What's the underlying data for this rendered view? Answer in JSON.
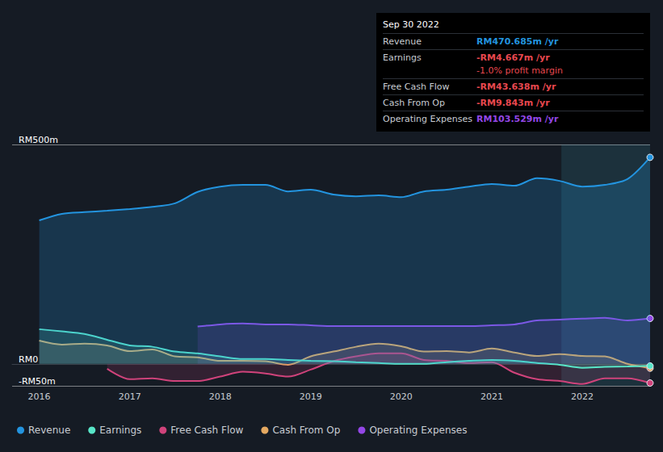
{
  "chart_data": {
    "type": "line",
    "x": [
      2016.0,
      2016.25,
      2016.5,
      2016.75,
      2017.0,
      2017.25,
      2017.5,
      2017.75,
      2018.0,
      2018.25,
      2018.5,
      2018.75,
      2019.0,
      2019.25,
      2019.5,
      2019.75,
      2020.0,
      2020.25,
      2020.5,
      2020.75,
      2021.0,
      2021.25,
      2021.5,
      2021.75,
      2022.0,
      2022.25,
      2022.5,
      2022.75
    ],
    "series": [
      {
        "name": "Revenue",
        "color": "#2394df",
        "values": [
          327,
          342,
          346,
          349,
          353,
          358,
          366,
          392,
          404,
          408,
          408,
          393,
          397,
          386,
          382,
          384,
          380,
          393,
          397,
          404,
          410,
          406,
          423,
          417,
          404,
          408,
          421,
          470.685
        ]
      },
      {
        "name": "Earnings",
        "color": "#58e6c8",
        "values": [
          79,
          74,
          68,
          55,
          42,
          39,
          28,
          24,
          17,
          11,
          11,
          9,
          7,
          6,
          4,
          2,
          0,
          0,
          4,
          7,
          9,
          7,
          2,
          -2,
          -9,
          -7,
          -6,
          -4.667
        ]
      },
      {
        "name": "Free Cash Flow",
        "color": "#d0437b",
        "values": [
          null,
          null,
          null,
          -11,
          -35,
          -33,
          -39,
          -39,
          -29,
          -18,
          -22,
          -29,
          -13,
          6,
          17,
          24,
          24,
          9,
          7,
          2,
          4,
          -20,
          -35,
          -39,
          -46,
          -33,
          -33,
          -43.638
        ]
      },
      {
        "name": "Cash From Op",
        "color": "#e5a961",
        "values": [
          53,
          44,
          46,
          42,
          29,
          33,
          17,
          15,
          7,
          7,
          6,
          -2,
          17,
          28,
          39,
          46,
          40,
          28,
          29,
          26,
          35,
          26,
          18,
          22,
          18,
          17,
          0,
          -9.843
        ]
      },
      {
        "name": "Operating Expenses",
        "color": "#9447e7",
        "values": [
          null,
          null,
          null,
          null,
          null,
          null,
          null,
          85,
          90,
          92,
          90,
          90,
          88,
          86,
          86,
          86,
          86,
          86,
          86,
          86,
          88,
          90,
          99,
          101,
          103,
          105,
          99,
          103.529
        ]
      }
    ],
    "xlim": [
      2015.7,
      2022.75
    ],
    "xticks": [
      2016,
      2017,
      2018,
      2019,
      2020,
      2021,
      2022
    ],
    "ylim": [
      -50,
      500
    ],
    "yticks": [
      {
        "value": -50,
        "label": "-RM50m"
      },
      {
        "value": 0,
        "label": "RM0"
      },
      {
        "value": 500,
        "label": "RM500m"
      }
    ],
    "shaded_x_range": [
      2021.77,
      2022.75
    ],
    "grid": true,
    "legend": "bottom-left",
    "annotation": {
      "title": "Sep 30 2022",
      "rows": [
        {
          "label": "Revenue",
          "text": "RM470.685m /yr"
        },
        {
          "label": "Earnings",
          "text": "-RM4.667m /yr",
          "note": "-1.0% profit margin"
        },
        {
          "label": "Free Cash Flow",
          "text": "-RM43.638m /yr"
        },
        {
          "label": "Cash From Op",
          "text": "-RM9.843m /yr"
        },
        {
          "label": "Operating Expenses",
          "text": "RM103.529m /yr"
        }
      ]
    }
  }
}
